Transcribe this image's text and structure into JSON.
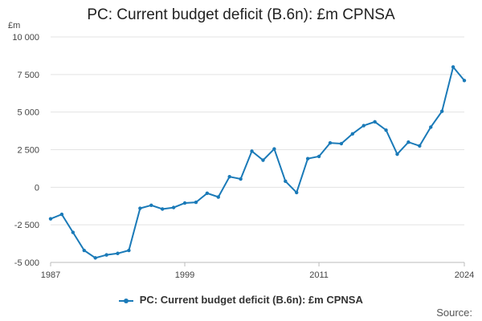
{
  "page": {
    "title": "PC: Current budget deficit (B.6n): £m CPNSA",
    "unit": "£m",
    "source_label": "Source:"
  },
  "colors": {
    "series": "#1a7ab8",
    "grid": "#e3e3e3",
    "axis": "#bbbbbb"
  },
  "chart_data": {
    "type": "line",
    "title": "PC: Current budget deficit (B.6n): £m CPNSA",
    "ylabel": "£m",
    "xlabel": "",
    "ylim": [
      -5000,
      10000
    ],
    "yticks": [
      10000,
      7500,
      5000,
      2500,
      0,
      -2500,
      -5000
    ],
    "ytick_labels": [
      "10 000",
      "7 500",
      "5 000",
      "2 500",
      "0",
      "-2 500",
      "-5 000"
    ],
    "xlim": [
      1987,
      2024
    ],
    "xticks": [
      1987,
      1999,
      2011,
      2024
    ],
    "xtick_labels": [
      "1987",
      "1999",
      "2011",
      "2024"
    ],
    "legend": "bottom-center",
    "series": [
      {
        "name": "PC: Current budget deficit (B.6n): £m CPNSA",
        "x": [
          1987,
          1988,
          1989,
          1990,
          1991,
          1992,
          1993,
          1994,
          1995,
          1996,
          1997,
          1998,
          1999,
          2000,
          2001,
          2002,
          2003,
          2004,
          2005,
          2006,
          2007,
          2008,
          2009,
          2010,
          2011,
          2012,
          2013,
          2014,
          2015,
          2016,
          2017,
          2018,
          2019,
          2020,
          2021,
          2022,
          2023,
          2024
        ],
        "values": [
          -2100,
          -1800,
          -3000,
          -4200,
          -4700,
          -4500,
          -4400,
          -4200,
          -1400,
          -1200,
          -1450,
          -1350,
          -1050,
          -1000,
          -400,
          -650,
          700,
          550,
          2400,
          1800,
          2550,
          400,
          -350,
          1900,
          2050,
          2950,
          2900,
          3550,
          4100,
          4350,
          3800,
          2200,
          3000,
          2750,
          4000,
          5050,
          8000,
          7100
        ]
      }
    ]
  }
}
